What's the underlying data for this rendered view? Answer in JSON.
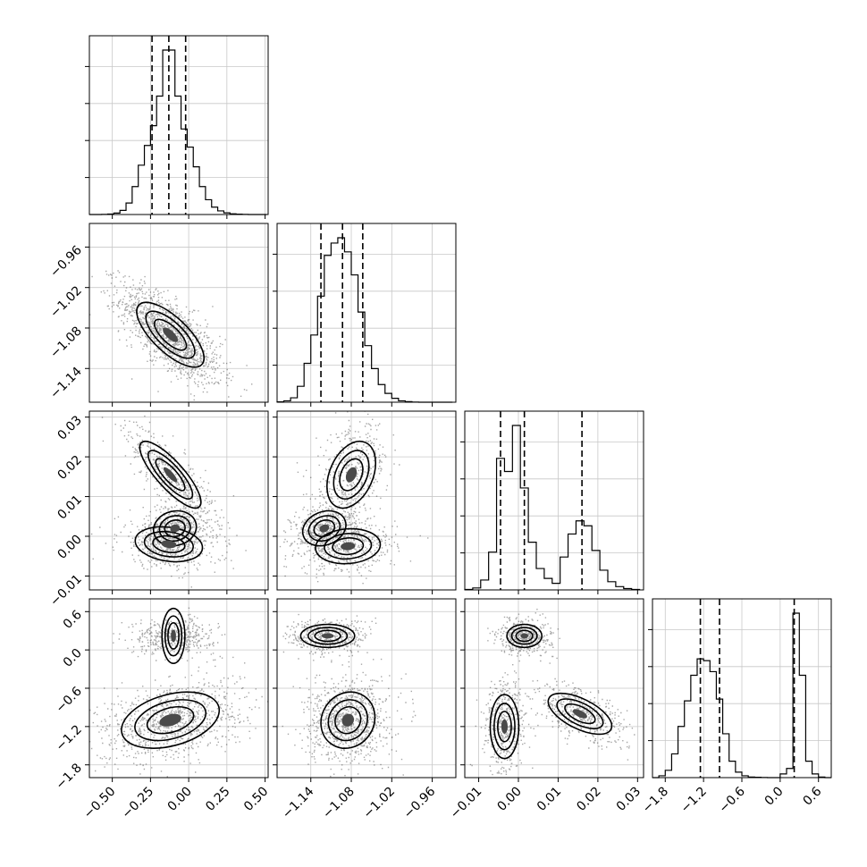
{
  "chart_data": {
    "type": "corner",
    "parameters": 4,
    "grid": true,
    "axes": [
      {
        "index": 0,
        "range": [
          -0.65,
          0.52
        ],
        "ticks": [
          -0.5,
          -0.25,
          0.0,
          0.25,
          0.5
        ],
        "tick_labels": [
          "−0.50",
          "−0.25",
          "0.00",
          "0.25",
          "0.50"
        ]
      },
      {
        "index": 1,
        "range": [
          -1.19,
          -0.925
        ],
        "ticks": [
          -1.14,
          -1.08,
          -1.02,
          -0.96
        ],
        "tick_labels": [
          "−1.14",
          "−1.08",
          "−1.02",
          "−0.96"
        ]
      },
      {
        "index": 2,
        "range": [
          -0.0135,
          0.0315
        ],
        "ticks": [
          -0.01,
          0.0,
          0.01,
          0.02,
          0.03
        ],
        "tick_labels": [
          "−0.01",
          "0.00",
          "0.01",
          "0.02",
          "0.03"
        ]
      },
      {
        "index": 3,
        "range": [
          -2.0,
          0.8
        ],
        "ticks": [
          -1.8,
          -1.2,
          -0.6,
          0.0,
          0.6
        ],
        "tick_labels": [
          "−1.8",
          "−1.2",
          "−0.6",
          "0.0",
          "0.6"
        ]
      }
    ],
    "marginals": [
      {
        "param": 0,
        "quantiles": [
          -0.24,
          -0.13,
          -0.02
        ],
        "bin_edges": [
          -0.65,
          -0.61,
          -0.57,
          -0.53,
          -0.49,
          -0.45,
          -0.41,
          -0.37,
          -0.33,
          -0.29,
          -0.25,
          -0.21,
          -0.17,
          -0.13,
          -0.09,
          -0.05,
          -0.01,
          0.03,
          0.07,
          0.11,
          0.15,
          0.19,
          0.23,
          0.27,
          0.31,
          0.35,
          0.39,
          0.43,
          0.47,
          0.51
        ],
        "counts": [
          0,
          0,
          1,
          3,
          9,
          25,
          70,
          170,
          300,
          420,
          540,
          720,
          1000,
          1000,
          720,
          520,
          410,
          290,
          170,
          90,
          45,
          22,
          10,
          4,
          2,
          1,
          0,
          0,
          0
        ]
      },
      {
        "param": 1,
        "quantiles": [
          -1.125,
          -1.093,
          -1.063
        ],
        "bin_edges": [
          -1.19,
          -1.18,
          -1.17,
          -1.16,
          -1.15,
          -1.14,
          -1.13,
          -1.12,
          -1.11,
          -1.1,
          -1.09,
          -1.08,
          -1.07,
          -1.06,
          -1.05,
          -1.04,
          -1.03,
          -1.02,
          -1.01,
          -1.0,
          -0.99,
          -0.98,
          -0.97,
          -0.96,
          -0.95,
          -0.94,
          -0.93
        ],
        "counts": [
          2,
          8,
          25,
          90,
          220,
          380,
          600,
          830,
          900,
          930,
          850,
          720,
          510,
          320,
          190,
          100,
          50,
          22,
          8,
          3,
          1,
          0,
          0,
          0,
          0,
          0
        ]
      },
      {
        "param": 2,
        "quantiles": [
          -0.0045,
          0.0015,
          0.016
        ],
        "bin_edges": [
          -0.0135,
          -0.0115,
          -0.0095,
          -0.0075,
          -0.0055,
          -0.0035,
          -0.0015,
          0.0005,
          0.0025,
          0.0045,
          0.0065,
          0.0085,
          0.0105,
          0.0125,
          0.0145,
          0.0165,
          0.0185,
          0.0205,
          0.0225,
          0.0245,
          0.0265,
          0.0285,
          0.0305
        ],
        "counts": [
          3,
          12,
          60,
          230,
          800,
          720,
          1000,
          620,
          290,
          130,
          70,
          40,
          200,
          340,
          420,
          390,
          240,
          120,
          50,
          20,
          8,
          3
        ]
      },
      {
        "param": 3,
        "quantiles": [
          -1.25,
          -0.95,
          0.22
        ],
        "bin_edges": [
          -2.0,
          -1.9,
          -1.8,
          -1.7,
          -1.6,
          -1.5,
          -1.4,
          -1.3,
          -1.2,
          -1.1,
          -1.0,
          -0.9,
          -0.8,
          -0.7,
          -0.6,
          -0.5,
          -0.4,
          -0.3,
          -0.2,
          -0.1,
          0.0,
          0.1,
          0.2,
          0.3,
          0.4,
          0.5,
          0.6,
          0.7,
          0.8
        ],
        "counts": [
          0,
          10,
          40,
          130,
          280,
          420,
          560,
          650,
          640,
          580,
          430,
          240,
          90,
          30,
          10,
          3,
          2,
          1,
          0,
          0,
          20,
          50,
          900,
          560,
          90,
          20,
          3,
          0
        ]
      }
    ],
    "pair_modes": [
      {
        "x": 0,
        "y": 1,
        "modes": [
          {
            "mean": [
              -0.12,
              -1.09
            ],
            "sd": [
              0.11,
              0.024
            ],
            "rho": -0.72,
            "weight": 1.0
          }
        ]
      },
      {
        "x": 0,
        "y": 2,
        "modes": [
          {
            "mean": [
              -0.12,
              0.0155
            ],
            "sd": [
              0.1,
              0.0042
            ],
            "rho": -0.82,
            "weight": 0.34
          },
          {
            "mean": [
              -0.09,
              0.002
            ],
            "sd": [
              0.07,
              0.0022
            ],
            "rho": 0.1,
            "weight": 0.33
          },
          {
            "mean": [
              -0.13,
              -0.002
            ],
            "sd": [
              0.11,
              0.0022
            ],
            "rho": -0.2,
            "weight": 0.33
          }
        ]
      },
      {
        "x": 1,
        "y": 2,
        "modes": [
          {
            "mean": [
              -1.08,
              0.0155
            ],
            "sd": [
              0.018,
              0.0042
            ],
            "rho": 0.35,
            "weight": 0.34
          },
          {
            "mean": [
              -1.12,
              0.002
            ],
            "sd": [
              0.016,
              0.0022
            ],
            "rho": 0.2,
            "weight": 0.33
          },
          {
            "mean": [
              -1.085,
              -0.0025
            ],
            "sd": [
              0.024,
              0.0022
            ],
            "rho": 0.1,
            "weight": 0.33
          }
        ]
      },
      {
        "x": 0,
        "y": 3,
        "modes": [
          {
            "mean": [
              -0.1,
              0.22
            ],
            "sd": [
              0.09,
              0.09
            ],
            "rho": 0.0,
            "weight": 0.33
          },
          {
            "mean": [
              -0.12,
              -1.1
            ],
            "sd": [
              0.16,
              0.22
            ],
            "rho": 0.35,
            "weight": 0.67
          }
        ]
      },
      {
        "x": 1,
        "y": 3,
        "modes": [
          {
            "mean": [
              -1.115,
              0.22
            ],
            "sd": [
              0.02,
              0.09
            ],
            "rho": 0.0,
            "weight": 0.33
          },
          {
            "mean": [
              -1.085,
              -1.1
            ],
            "sd": [
              0.02,
              0.22
            ],
            "rho": 0.1,
            "weight": 0.67
          }
        ]
      },
      {
        "x": 2,
        "y": 3,
        "modes": [
          {
            "mean": [
              0.0015,
              0.22
            ],
            "sd": [
              0.0022,
              0.09
            ],
            "rho": 0.0,
            "weight": 0.33
          },
          {
            "mean": [
              -0.0035,
              -1.2
            ],
            "sd": [
              0.0018,
              0.25
            ],
            "rho": 0.0,
            "weight": 0.34
          },
          {
            "mean": [
              0.0155,
              -1.0
            ],
            "sd": [
              0.004,
              0.16
            ],
            "rho": -0.6,
            "weight": 0.33
          }
        ]
      }
    ]
  }
}
